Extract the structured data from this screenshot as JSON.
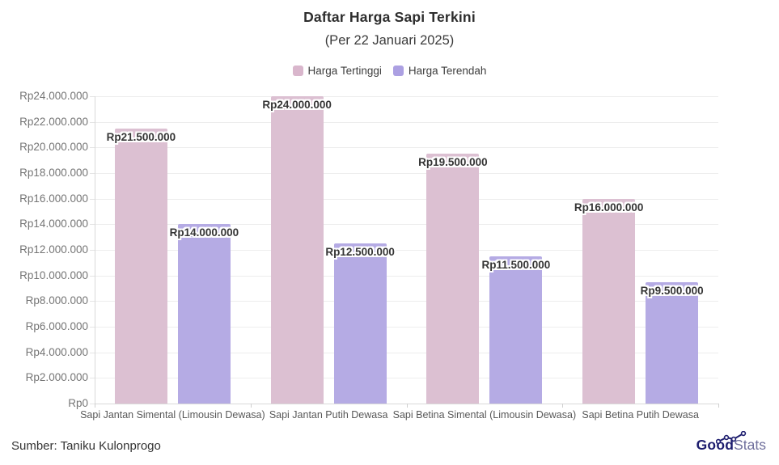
{
  "header": {
    "title": "Daftar Harga Sapi Terkini",
    "subtitle": "(Per 22 Januari 2025)"
  },
  "legend": [
    {
      "label": "Harga Tertinggi",
      "color": "#d9b6cc"
    },
    {
      "label": "Harga Terendah",
      "color": "#aca0e2"
    }
  ],
  "chart_data": {
    "type": "bar",
    "title": "Daftar Harga Sapi Terkini",
    "subtitle": "(Per 22 Januari 2025)",
    "categories": [
      "Sapi Jantan Simental (Limousin Dewasa)",
      "Sapi Jantan Putih Dewasa",
      "Sapi Betina Simental (Limousin Dewasa)",
      "Sapi Betina Putih Dewasa"
    ],
    "series": [
      {
        "name": "Harga Tertinggi",
        "color": "#dcc0d2",
        "values": [
          21500000,
          24000000,
          19500000,
          16000000
        ],
        "labels": [
          "Rp21.500.000",
          "Rp24.000.000",
          "Rp19.500.000",
          "Rp16.000.000"
        ]
      },
      {
        "name": "Harga Terendah",
        "color": "#b5abe4",
        "values": [
          14000000,
          12500000,
          11500000,
          9500000
        ],
        "labels": [
          "Rp14.000.000",
          "Rp12.500.000",
          "Rp11.500.000",
          "Rp9.500.000"
        ]
      }
    ],
    "y_axis": {
      "min": 0,
      "max": 24000000,
      "step": 2000000,
      "tick_labels": [
        "Rp0",
        "Rp2.000.000",
        "Rp4.000.000",
        "Rp6.000.000",
        "Rp8.000.000",
        "Rp10.000.000",
        "Rp12.000.000",
        "Rp14.000.000",
        "Rp16.000.000",
        "Rp18.000.000",
        "Rp20.000.000",
        "Rp22.000.000",
        "Rp24.000.000"
      ]
    },
    "grid": true,
    "legend_position": "top"
  },
  "footer": {
    "source": "Sumber: Taniku Kulonprogo",
    "logo": {
      "bold": "Good",
      "light": "Stats"
    }
  }
}
